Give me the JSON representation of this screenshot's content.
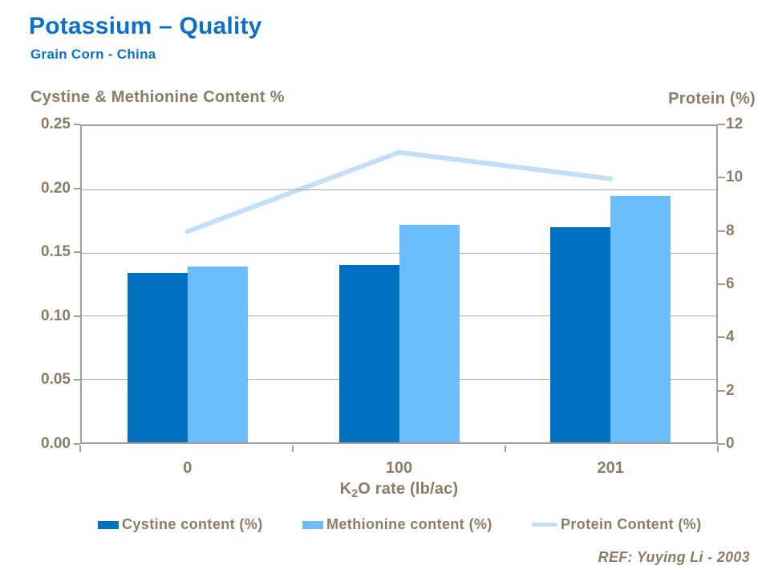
{
  "header": {
    "title": "Potassium – Quality",
    "subtitle": "Grain Corn - China"
  },
  "footer": {
    "ref": "REF: Yuying Li - 2003"
  },
  "colors": {
    "title_blue": "#0C71C4",
    "taupe": "#8C7C67",
    "axis": "#A79D92",
    "grid": "#B3A99D",
    "cystine": "#0070C0",
    "methionine": "#6CBDFB",
    "protein_line": "#C2DFF6"
  },
  "chart_data": {
    "type": "bar",
    "subtype": "dual-axis bar + line",
    "categories": [
      "0",
      "100",
      "201"
    ],
    "series": [
      {
        "name": "Cystine content (%)",
        "type": "bar",
        "axis": "left",
        "values": [
          0.134,
          0.14,
          0.17
        ]
      },
      {
        "name": "Methionine content (%)",
        "type": "bar",
        "axis": "left",
        "values": [
          0.139,
          0.172,
          0.195
        ]
      },
      {
        "name": "Protein Content (%)",
        "type": "line",
        "axis": "right",
        "values": [
          8,
          11,
          10
        ]
      }
    ],
    "left_axis": {
      "title": "Cystine & Methionine Content %",
      "min": 0,
      "max": 0.25,
      "ticks": [
        "0.25",
        "0.20",
        "0.15",
        "0.10",
        "0.05",
        "0.00"
      ]
    },
    "right_axis": {
      "title": "Protein (%)",
      "min": 0,
      "max": 12,
      "ticks": [
        "12",
        "10",
        "8",
        "6",
        "4",
        "2",
        "0"
      ]
    },
    "x_axis": {
      "title_parts": {
        "prefix": "K",
        "sub": "2",
        "suffix": "O rate (lb/ac)"
      }
    },
    "grid": true,
    "legend_position": "bottom"
  }
}
